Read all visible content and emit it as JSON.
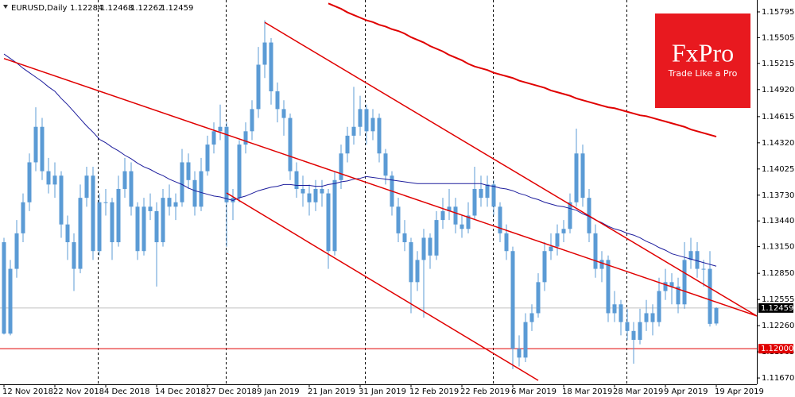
{
  "chart_data": {
    "type": "candlestick",
    "symbol": "EURUSD,Daily",
    "logo": {
      "brand": "FxPro",
      "tagline": "Trade Like a Pro"
    },
    "candle_color": "#5b9bd5",
    "ylim": [
      1.11599,
      1.15929
    ],
    "yticks": [
      {
        "value": 1.15795,
        "label": "1.15795"
      },
      {
        "value": 1.15505,
        "label": "1.15505"
      },
      {
        "value": 1.15215,
        "label": "1.15215"
      },
      {
        "value": 1.1492,
        "label": "1.14920"
      },
      {
        "value": 1.14615,
        "label": "1.14615"
      },
      {
        "value": 1.1432,
        "label": "1.14320"
      },
      {
        "value": 1.14025,
        "label": "1.14025"
      },
      {
        "value": 1.1373,
        "label": "1.13730"
      },
      {
        "value": 1.1344,
        "label": "1.13440"
      },
      {
        "value": 1.1315,
        "label": "1.13150"
      },
      {
        "value": 1.1285,
        "label": "1.12850"
      },
      {
        "value": 1.12555,
        "label": "1.12555"
      },
      {
        "value": 1.1226,
        "label": "1.12260"
      },
      {
        "value": 1.11965,
        "label": "1.11965"
      },
      {
        "value": 1.1167,
        "label": "1.11670"
      }
    ],
    "categories": [
      "12 Nov 2018",
      null,
      null,
      null,
      null,
      null,
      null,
      null,
      "22 Nov 2018",
      null,
      null,
      null,
      null,
      null,
      null,
      null,
      "4 Dec 2018",
      null,
      null,
      null,
      null,
      null,
      null,
      null,
      "14 Dec 2018",
      null,
      null,
      null,
      null,
      null,
      null,
      null,
      "27 Dec 2018",
      null,
      null,
      null,
      null,
      null,
      null,
      null,
      "9 Jan 2019",
      null,
      null,
      null,
      null,
      null,
      null,
      null,
      "21 Jan 2019",
      null,
      null,
      null,
      null,
      null,
      null,
      null,
      "31 Jan 2019",
      null,
      null,
      null,
      null,
      null,
      null,
      null,
      "12 Feb 2019",
      null,
      null,
      null,
      null,
      null,
      null,
      null,
      "22 Feb 2019",
      null,
      null,
      null,
      null,
      null,
      null,
      null,
      "6 Mar 2019",
      null,
      null,
      null,
      null,
      null,
      null,
      null,
      "18 Mar 2019",
      null,
      null,
      null,
      null,
      null,
      null,
      null,
      "28 Mar 2019",
      null,
      null,
      null,
      null,
      null,
      null,
      null,
      "9 Apr 2019",
      null,
      null,
      null,
      null,
      null,
      null,
      null,
      "19 Apr 2019"
    ],
    "candles": [
      [
        1.132,
        1.1325,
        1.1216,
        1.1217
      ],
      [
        1.1217,
        1.13,
        1.1215,
        1.129
      ],
      [
        1.129,
        1.1345,
        1.128,
        1.133
      ],
      [
        1.133,
        1.1375,
        1.132,
        1.1365
      ],
      [
        1.1365,
        1.142,
        1.1355,
        1.141
      ],
      [
        1.141,
        1.1472,
        1.14,
        1.145
      ],
      [
        1.145,
        1.146,
        1.139,
        1.14
      ],
      [
        1.14,
        1.1415,
        1.1375,
        1.1385
      ],
      [
        1.1385,
        1.141,
        1.137,
        1.1395
      ],
      [
        1.1395,
        1.14,
        1.1325,
        1.134
      ],
      [
        1.134,
        1.135,
        1.13,
        1.132
      ],
      [
        1.132,
        1.133,
        1.1265,
        1.129
      ],
      [
        1.129,
        1.1385,
        1.1285,
        1.137
      ],
      [
        1.137,
        1.1405,
        1.136,
        1.1395
      ],
      [
        1.1395,
        1.1405,
        1.13,
        1.131
      ],
      [
        1.131,
        1.1375,
        1.1305,
        1.1365
      ],
      [
        1.1365,
        1.138,
        1.135,
        1.1365
      ],
      [
        1.1365,
        1.137,
        1.13,
        1.132
      ],
      [
        1.132,
        1.1395,
        1.1315,
        1.138
      ],
      [
        1.138,
        1.1415,
        1.137,
        1.14
      ],
      [
        1.14,
        1.141,
        1.135,
        1.136
      ],
      [
        1.136,
        1.1365,
        1.13,
        1.131
      ],
      [
        1.131,
        1.137,
        1.1305,
        1.136
      ],
      [
        1.136,
        1.1375,
        1.1345,
        1.1355
      ],
      [
        1.1355,
        1.1365,
        1.127,
        1.132
      ],
      [
        1.132,
        1.138,
        1.1315,
        1.137
      ],
      [
        1.137,
        1.1385,
        1.135,
        1.136
      ],
      [
        1.136,
        1.1375,
        1.1345,
        1.1365
      ],
      [
        1.1365,
        1.1425,
        1.136,
        1.141
      ],
      [
        1.141,
        1.142,
        1.138,
        1.139
      ],
      [
        1.139,
        1.14,
        1.135,
        1.136
      ],
      [
        1.136,
        1.1415,
        1.1355,
        1.14
      ],
      [
        1.14,
        1.144,
        1.1395,
        1.143
      ],
      [
        1.143,
        1.1455,
        1.142,
        1.1445
      ],
      [
        1.1445,
        1.1475,
        1.1435,
        1.145
      ],
      [
        1.145,
        1.1455,
        1.1315,
        1.1365
      ],
      [
        1.1365,
        1.138,
        1.1345,
        1.137
      ],
      [
        1.137,
        1.1435,
        1.1365,
        1.143
      ],
      [
        1.143,
        1.1455,
        1.142,
        1.1445
      ],
      [
        1.1445,
        1.148,
        1.1435,
        1.147
      ],
      [
        1.147,
        1.154,
        1.146,
        1.152
      ],
      [
        1.152,
        1.157,
        1.1505,
        1.1545
      ],
      [
        1.1545,
        1.155,
        1.1475,
        1.149
      ],
      [
        1.149,
        1.15,
        1.1455,
        1.147
      ],
      [
        1.147,
        1.148,
        1.144,
        1.146
      ],
      [
        1.146,
        1.1465,
        1.139,
        1.14
      ],
      [
        1.14,
        1.141,
        1.137,
        1.138
      ],
      [
        1.138,
        1.1395,
        1.136,
        1.1375
      ],
      [
        1.1375,
        1.1385,
        1.135,
        1.1365
      ],
      [
        1.1365,
        1.139,
        1.1355,
        1.138
      ],
      [
        1.138,
        1.139,
        1.136,
        1.1375
      ],
      [
        1.1375,
        1.138,
        1.129,
        1.131
      ],
      [
        1.131,
        1.14,
        1.1305,
        1.139
      ],
      [
        1.139,
        1.143,
        1.138,
        1.142
      ],
      [
        1.142,
        1.145,
        1.141,
        1.144
      ],
      [
        1.144,
        1.1495,
        1.143,
        1.145
      ],
      [
        1.145,
        1.1485,
        1.144,
        1.147
      ],
      [
        1.147,
        1.1475,
        1.143,
        1.1445
      ],
      [
        1.1445,
        1.147,
        1.1435,
        1.146
      ],
      [
        1.146,
        1.1465,
        1.141,
        1.142
      ],
      [
        1.142,
        1.1425,
        1.1385,
        1.1395
      ],
      [
        1.1395,
        1.14,
        1.135,
        1.136
      ],
      [
        1.136,
        1.137,
        1.132,
        1.133
      ],
      [
        1.133,
        1.1345,
        1.131,
        1.132
      ],
      [
        1.132,
        1.1325,
        1.124,
        1.1275
      ],
      [
        1.1275,
        1.131,
        1.1265,
        1.13
      ],
      [
        1.13,
        1.1335,
        1.1235,
        1.1325
      ],
      [
        1.1325,
        1.133,
        1.129,
        1.1305
      ],
      [
        1.1305,
        1.1355,
        1.13,
        1.1345
      ],
      [
        1.1345,
        1.137,
        1.1335,
        1.1355
      ],
      [
        1.1355,
        1.138,
        1.1345,
        1.136
      ],
      [
        1.136,
        1.137,
        1.133,
        1.134
      ],
      [
        1.134,
        1.135,
        1.1325,
        1.1335
      ],
      [
        1.1335,
        1.1365,
        1.133,
        1.135
      ],
      [
        1.135,
        1.1405,
        1.1345,
        1.138
      ],
      [
        1.138,
        1.1395,
        1.136,
        1.137
      ],
      [
        1.137,
        1.1395,
        1.136,
        1.1385
      ],
      [
        1.1385,
        1.139,
        1.135,
        1.136
      ],
      [
        1.136,
        1.1365,
        1.132,
        1.133
      ],
      [
        1.133,
        1.134,
        1.13,
        1.131
      ],
      [
        1.131,
        1.1315,
        1.1177,
        1.12
      ],
      [
        1.12,
        1.1215,
        1.118,
        1.119
      ],
      [
        1.119,
        1.124,
        1.1185,
        1.123
      ],
      [
        1.123,
        1.125,
        1.122,
        1.124
      ],
      [
        1.124,
        1.1285,
        1.1235,
        1.1275
      ],
      [
        1.1275,
        1.132,
        1.1265,
        1.131
      ],
      [
        1.131,
        1.133,
        1.13,
        1.1315
      ],
      [
        1.1315,
        1.134,
        1.1305,
        1.133
      ],
      [
        1.133,
        1.1345,
        1.132,
        1.1335
      ],
      [
        1.1335,
        1.1375,
        1.133,
        1.1365
      ],
      [
        1.1365,
        1.1448,
        1.136,
        1.142
      ],
      [
        1.142,
        1.143,
        1.136,
        1.137
      ],
      [
        1.137,
        1.138,
        1.132,
        1.133
      ],
      [
        1.133,
        1.134,
        1.128,
        1.129
      ],
      [
        1.129,
        1.131,
        1.1275,
        1.13
      ],
      [
        1.13,
        1.1305,
        1.123,
        1.124
      ],
      [
        1.124,
        1.1265,
        1.123,
        1.125
      ],
      [
        1.125,
        1.1255,
        1.1215,
        1.123
      ],
      [
        1.123,
        1.1245,
        1.121,
        1.122
      ],
      [
        1.122,
        1.123,
        1.1183,
        1.121
      ],
      [
        1.121,
        1.1245,
        1.1205,
        1.123
      ],
      [
        1.123,
        1.1255,
        1.122,
        1.124
      ],
      [
        1.124,
        1.125,
        1.1215,
        1.123
      ],
      [
        1.123,
        1.128,
        1.1225,
        1.1265
      ],
      [
        1.1265,
        1.129,
        1.1255,
        1.1275
      ],
      [
        1.1275,
        1.1285,
        1.125,
        1.127
      ],
      [
        1.127,
        1.128,
        1.124,
        1.125
      ],
      [
        1.125,
        1.132,
        1.1245,
        1.13
      ],
      [
        1.13,
        1.1325,
        1.129,
        1.131
      ],
      [
        1.131,
        1.132,
        1.128,
        1.129
      ],
      [
        1.129,
        1.13,
        1.127,
        1.129
      ],
      [
        1.129,
        1.131,
        1.1225,
        1.1228
      ],
      [
        1.12284,
        1.12468,
        1.12262,
        1.12459
      ]
    ],
    "lines": [
      {
        "color": "#1c1c9c",
        "values": [
          1.1532,
          1.1527,
          1.1522,
          1.1516,
          1.1511,
          1.1506,
          1.1501,
          1.1495,
          1.149,
          1.1482,
          1.1475,
          1.1467,
          1.1459,
          1.1451,
          1.1444,
          1.1436,
          1.1432,
          1.1427,
          1.1423,
          1.1418,
          1.1414,
          1.1409,
          1.1405,
          1.1402,
          1.1398,
          1.1395,
          1.1391,
          1.1388,
          1.1385,
          1.1381,
          1.1378,
          1.1376,
          1.1374,
          1.1372,
          1.1371,
          1.1369,
          1.1367,
          1.137,
          1.1372,
          1.1375,
          1.1378,
          1.138,
          1.1382,
          1.1383,
          1.1385,
          1.1385,
          1.1384,
          1.1384,
          1.1384,
          1.1383,
          1.1383,
          1.1385,
          1.1386,
          1.1388,
          1.1389,
          1.1391,
          1.1392,
          1.1394,
          1.1393,
          1.1392,
          1.1391,
          1.139,
          1.1389,
          1.1388,
          1.1387,
          1.1386,
          1.1386,
          1.1386,
          1.1386,
          1.1386,
          1.1386,
          1.1386,
          1.1386,
          1.1386,
          1.1386,
          1.1386,
          1.1384,
          1.1383,
          1.1381,
          1.138,
          1.1378,
          1.1375,
          1.1373,
          1.137,
          1.1368,
          1.1365,
          1.1363,
          1.1361,
          1.136,
          1.1358,
          1.1356,
          1.1352,
          1.1349,
          1.1345,
          1.1342,
          1.1338,
          1.1335,
          1.1333,
          1.133,
          1.1328,
          1.1325,
          1.1321,
          1.1318,
          1.1314,
          1.1311,
          1.1307,
          1.1305,
          1.1303,
          1.1301,
          1.1299,
          1.1297,
          1.1295,
          1.1293
        ]
      },
      {
        "color": "#e00000",
        "values": [
          null,
          null,
          null,
          null,
          null,
          null,
          null,
          null,
          null,
          null,
          null,
          null,
          null,
          null,
          null,
          null,
          null,
          null,
          null,
          null,
          null,
          null,
          null,
          null,
          null,
          null,
          null,
          null,
          null,
          null,
          null,
          null,
          null,
          null,
          null,
          null,
          null,
          null,
          null,
          null,
          null,
          null,
          null,
          null,
          null,
          null,
          null,
          null,
          null,
          null,
          null,
          1.1589,
          1.1586,
          1.1583,
          1.1579,
          1.1576,
          1.1573,
          1.157,
          1.1568,
          1.1565,
          1.1563,
          1.156,
          1.1558,
          1.1555,
          1.1551,
          1.1548,
          1.1545,
          1.1541,
          1.1538,
          1.1535,
          1.1531,
          1.1528,
          1.1525,
          1.1521,
          1.1518,
          1.1516,
          1.1514,
          1.1511,
          1.1509,
          1.1507,
          1.1505,
          1.1502,
          1.15,
          1.1498,
          1.1496,
          1.1494,
          1.1491,
          1.1489,
          1.1487,
          1.1485,
          1.1482,
          1.148,
          1.1478,
          1.1476,
          1.1474,
          1.1472,
          1.1471,
          1.1469,
          1.1467,
          1.1465,
          1.1463,
          1.1462,
          1.146,
          1.1458,
          1.1456,
          1.1454,
          1.1452,
          1.145,
          1.1447,
          1.1445,
          1.1443,
          1.1441,
          1.1439
        ]
      }
    ],
    "trendlines": [
      {
        "color": "#e00000",
        "start": {
          "index": 0,
          "value": 1.1527
        },
        "end": {
          "index": 112,
          "value": 1.12525
        },
        "extend": "right"
      },
      {
        "color": "#e00000",
        "start": {
          "index": 41,
          "value": 1.15677
        },
        "end": {
          "index": 112,
          "value": 1.12641
        },
        "extend": "right"
      },
      {
        "color": "#e00000",
        "start": {
          "index": 35,
          "value": 1.13755
        },
        "end": {
          "index": 84,
          "value": 1.11643
        },
        "extend": "none"
      }
    ],
    "hlines": [
      {
        "value": 1.12,
        "label": "1.12000",
        "color": "#e00000"
      }
    ],
    "price_line_color": "#c0c0c0"
  }
}
